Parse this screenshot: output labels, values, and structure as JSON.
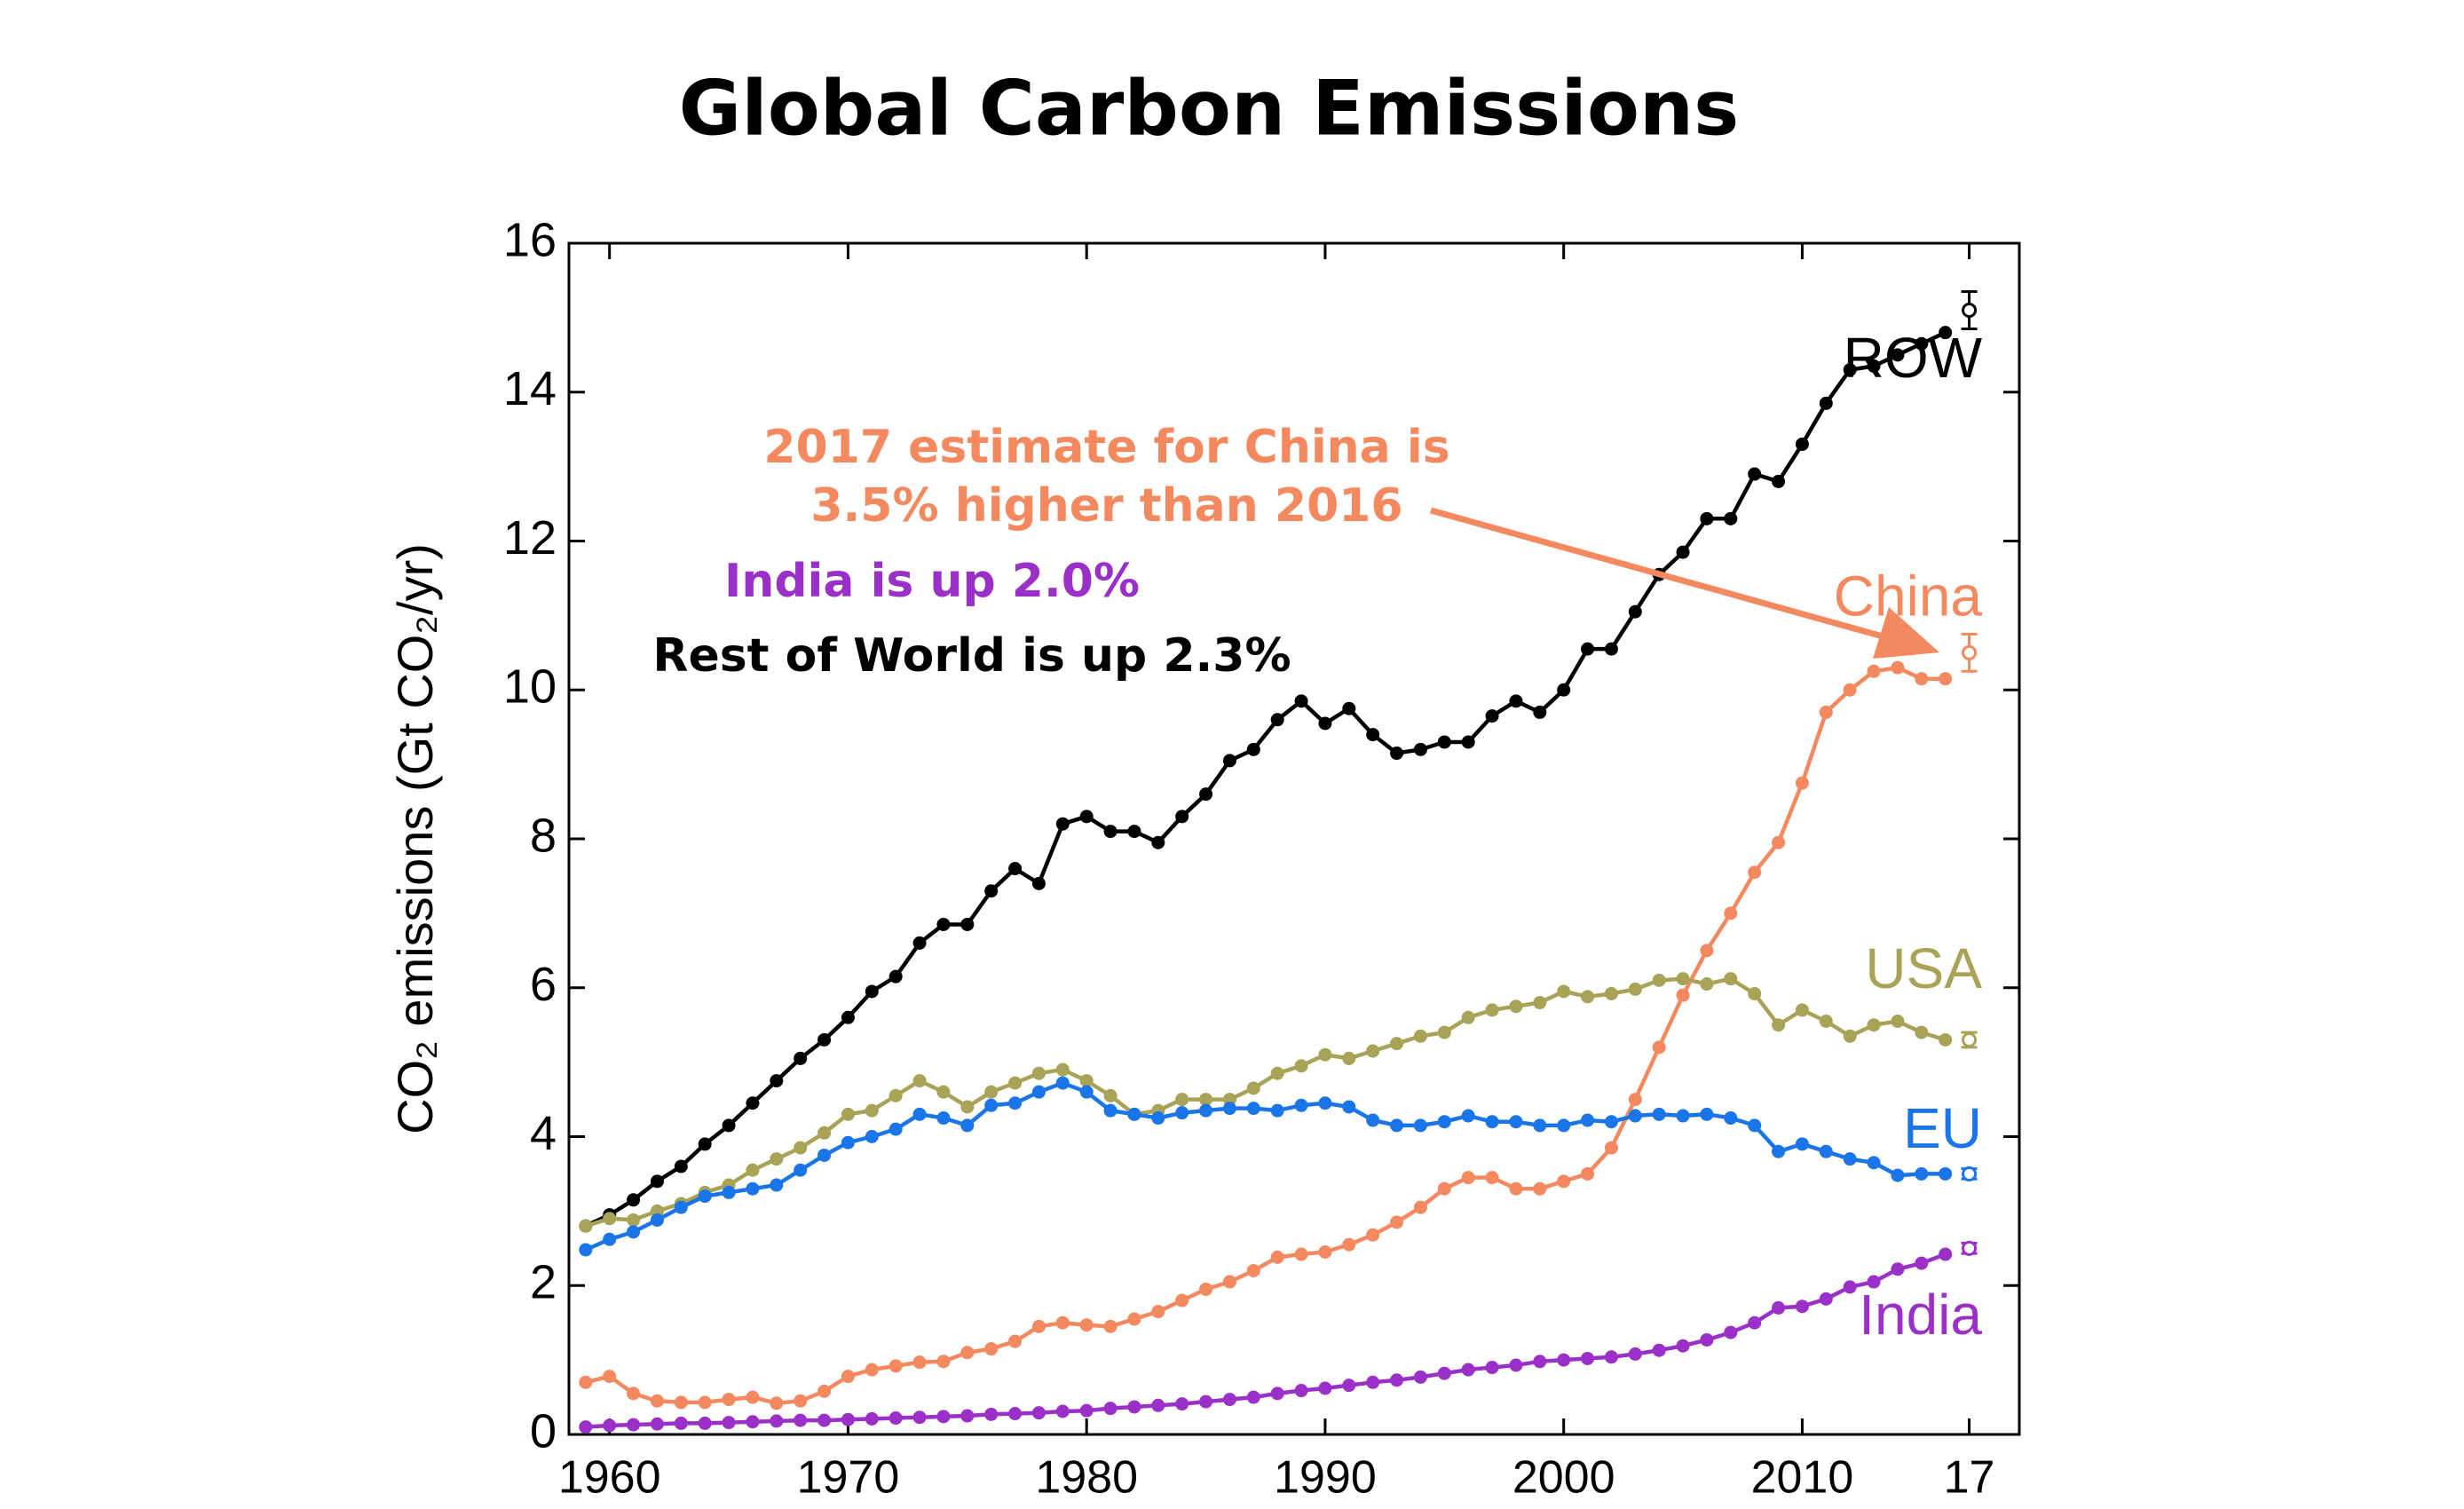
{
  "chart_data": {
    "type": "line",
    "title": "Global Carbon Emissions",
    "ylabel": "CO₂ emissions (Gt CO₂/yr)",
    "x": [
      1959,
      1960,
      1961,
      1962,
      1963,
      1964,
      1965,
      1966,
      1967,
      1968,
      1969,
      1970,
      1971,
      1972,
      1973,
      1974,
      1975,
      1976,
      1977,
      1978,
      1979,
      1980,
      1981,
      1982,
      1983,
      1984,
      1985,
      1986,
      1987,
      1988,
      1989,
      1990,
      1991,
      1992,
      1993,
      1994,
      1995,
      1996,
      1997,
      1998,
      1999,
      2000,
      2001,
      2002,
      2003,
      2004,
      2005,
      2006,
      2007,
      2008,
      2009,
      2010,
      2011,
      2012,
      2013,
      2014,
      2015,
      2016
    ],
    "xlim": [
      1958.3,
      2019.1
    ],
    "ylim": [
      0,
      16
    ],
    "xticks": [
      1960,
      1970,
      1980,
      1990,
      2000,
      2010,
      {
        "value": 2017,
        "label": "17"
      }
    ],
    "yticks": [
      0,
      2,
      4,
      6,
      8,
      10,
      12,
      14,
      16
    ],
    "estimate_x": 2017,
    "series": [
      {
        "name": "ROW",
        "color": "#000000",
        "values": [
          2.8,
          2.95,
          3.15,
          3.4,
          3.6,
          3.9,
          4.15,
          4.45,
          4.75,
          5.05,
          5.3,
          5.6,
          5.95,
          6.15,
          6.6,
          6.85,
          6.85,
          7.3,
          7.6,
          7.4,
          8.2,
          8.3,
          8.1,
          8.1,
          7.95,
          8.3,
          8.6,
          9.05,
          9.2,
          9.6,
          9.85,
          9.55,
          9.75,
          9.4,
          9.15,
          9.2,
          9.3,
          9.3,
          9.65,
          9.85,
          9.7,
          10.0,
          10.55,
          10.55,
          11.05,
          11.55,
          11.85,
          12.3,
          12.3,
          12.9,
          12.8,
          13.3,
          13.85,
          14.3,
          14.35,
          14.5,
          14.65,
          14.8
        ],
        "estimate": 15.1,
        "estimate_error": 0.25
      },
      {
        "name": "China",
        "color": "#f4895f",
        "values": [
          0.7,
          0.78,
          0.55,
          0.45,
          0.43,
          0.43,
          0.47,
          0.5,
          0.42,
          0.45,
          0.58,
          0.78,
          0.87,
          0.92,
          0.97,
          0.98,
          1.1,
          1.15,
          1.25,
          1.45,
          1.5,
          1.47,
          1.45,
          1.55,
          1.65,
          1.8,
          1.95,
          2.05,
          2.2,
          2.38,
          2.42,
          2.45,
          2.55,
          2.68,
          2.85,
          3.05,
          3.3,
          3.45,
          3.45,
          3.3,
          3.3,
          3.4,
          3.5,
          3.85,
          4.5,
          5.2,
          5.9,
          6.5,
          7.0,
          7.55,
          7.95,
          8.75,
          9.7,
          10.0,
          10.25,
          10.3,
          10.15,
          10.15
        ],
        "estimate": 10.5,
        "estimate_error": 0.25
      },
      {
        "name": "USA",
        "color": "#a8a356",
        "values": [
          2.8,
          2.9,
          2.88,
          3.0,
          3.1,
          3.25,
          3.35,
          3.55,
          3.7,
          3.85,
          4.05,
          4.3,
          4.35,
          4.55,
          4.75,
          4.6,
          4.4,
          4.6,
          4.72,
          4.85,
          4.9,
          4.75,
          4.55,
          4.3,
          4.35,
          4.5,
          4.5,
          4.5,
          4.65,
          4.85,
          4.95,
          5.1,
          5.05,
          5.15,
          5.25,
          5.35,
          5.4,
          5.6,
          5.7,
          5.75,
          5.8,
          5.95,
          5.88,
          5.92,
          5.98,
          6.1,
          6.12,
          6.05,
          6.12,
          5.92,
          5.5,
          5.7,
          5.55,
          5.35,
          5.5,
          5.55,
          5.4,
          5.3
        ],
        "estimate": 5.3,
        "estimate_error": 0.1
      },
      {
        "name": "EU",
        "color": "#1a75e8",
        "values": [
          2.48,
          2.62,
          2.72,
          2.88,
          3.05,
          3.2,
          3.25,
          3.3,
          3.35,
          3.55,
          3.75,
          3.92,
          4.0,
          4.1,
          4.3,
          4.25,
          4.15,
          4.42,
          4.45,
          4.6,
          4.72,
          4.6,
          4.35,
          4.3,
          4.25,
          4.32,
          4.35,
          4.38,
          4.38,
          4.35,
          4.42,
          4.45,
          4.4,
          4.22,
          4.15,
          4.15,
          4.2,
          4.28,
          4.2,
          4.2,
          4.15,
          4.15,
          4.22,
          4.2,
          4.28,
          4.3,
          4.28,
          4.3,
          4.25,
          4.15,
          3.8,
          3.9,
          3.8,
          3.7,
          3.65,
          3.48,
          3.5,
          3.5
        ],
        "estimate": 3.5,
        "estimate_error": 0.07
      },
      {
        "name": "India",
        "color": "#9b30c8",
        "values": [
          0.1,
          0.12,
          0.13,
          0.14,
          0.15,
          0.15,
          0.16,
          0.17,
          0.18,
          0.19,
          0.19,
          0.2,
          0.21,
          0.22,
          0.23,
          0.24,
          0.25,
          0.27,
          0.28,
          0.29,
          0.31,
          0.32,
          0.35,
          0.37,
          0.39,
          0.41,
          0.44,
          0.47,
          0.5,
          0.55,
          0.59,
          0.62,
          0.66,
          0.7,
          0.73,
          0.77,
          0.82,
          0.87,
          0.9,
          0.93,
          0.98,
          1.0,
          1.02,
          1.04,
          1.08,
          1.13,
          1.19,
          1.27,
          1.37,
          1.5,
          1.7,
          1.72,
          1.82,
          1.98,
          2.05,
          2.22,
          2.3,
          2.42
        ],
        "estimate": 2.5,
        "estimate_error": 0.07
      }
    ],
    "annotations": [
      {
        "lines": [
          "2017 estimate for China is",
          "3.5% higher than 2016"
        ],
        "color": "#f4895f"
      },
      {
        "lines": [
          "India is up 2.0%"
        ],
        "color": "#9b30c8"
      },
      {
        "lines": [
          "Rest of World is up 2.3%"
        ],
        "color": "#000000"
      }
    ]
  }
}
